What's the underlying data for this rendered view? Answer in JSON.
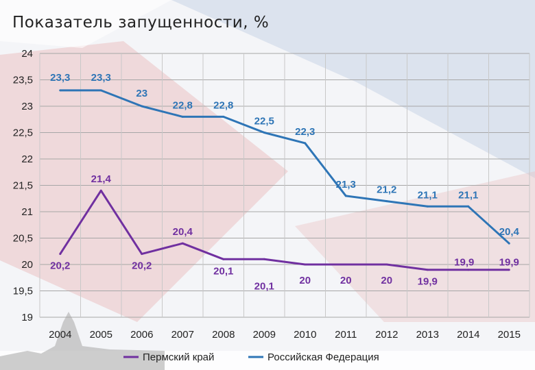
{
  "title": "Показатель запущенности, %",
  "chart_data": {
    "type": "line",
    "categories": [
      "2004",
      "2005",
      "2006",
      "2007",
      "2008",
      "2009",
      "2010",
      "2011",
      "2012",
      "2013",
      "2014",
      "2015"
    ],
    "yticks": [
      "24",
      "23,5",
      "23",
      "22,5",
      "22",
      "21,5",
      "21",
      "20,5",
      "20",
      "19,5",
      "19"
    ],
    "ylim": [
      19,
      24
    ],
    "grid": true,
    "legend_position": "bottom",
    "series": [
      {
        "name": "Пермский край",
        "color": "#7030a0",
        "values": [
          20.2,
          21.4,
          20.2,
          20.4,
          20.1,
          20.1,
          20,
          20,
          20,
          19.9,
          19.9,
          19.9
        ],
        "labels": [
          "20,2",
          "21,4",
          "20,2",
          "20,4",
          "20,1",
          "20,1",
          "20",
          "20",
          "20",
          "19,9",
          "19,9",
          "19,9"
        ]
      },
      {
        "name": "Российская Федерация",
        "color": "#2e75b6",
        "values": [
          23.3,
          23.3,
          23,
          22.8,
          22.8,
          22.5,
          22.3,
          21.3,
          21.2,
          21.1,
          21.1,
          20.4
        ],
        "labels": [
          "23,3",
          "23,3",
          "23",
          "22,8",
          "22,8",
          "22,5",
          "22,3",
          "21,3",
          "21,2",
          "21,1",
          "21,1",
          "20,4"
        ]
      }
    ]
  }
}
